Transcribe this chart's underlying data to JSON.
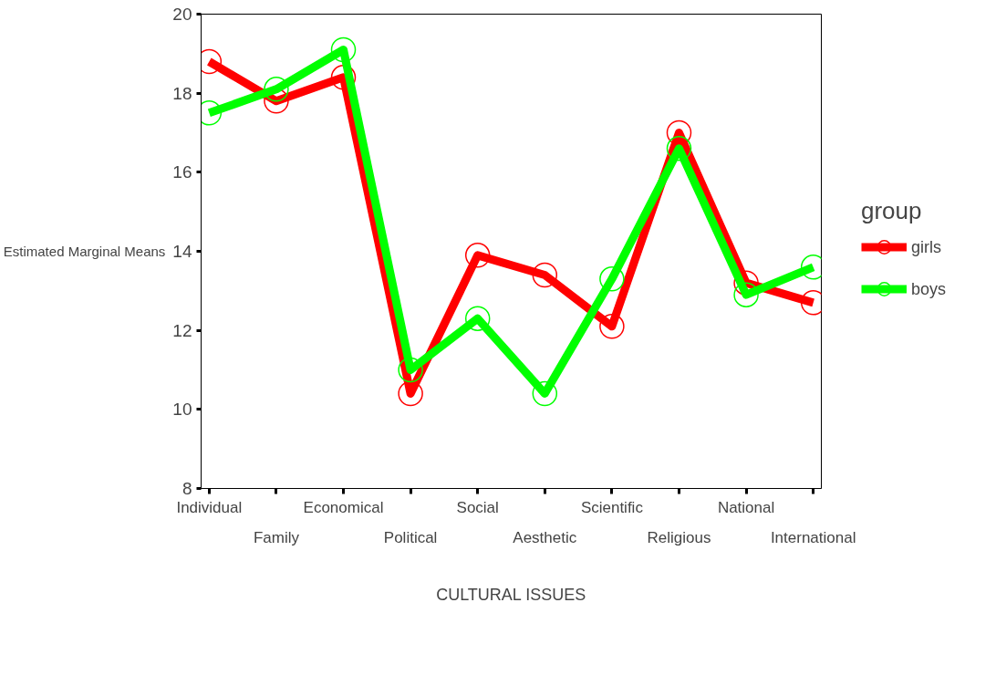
{
  "chart_data": {
    "type": "line",
    "xlabel": "CULTURAL ISSUES",
    "ylabel": "Estimated Marginal Means",
    "legend_title": "group",
    "categories": [
      "Individual",
      "Family",
      "Economical",
      "Political",
      "Social",
      "Aesthetic",
      "Scientific",
      "Religious",
      "National",
      "International"
    ],
    "series": [
      {
        "name": "girls",
        "color": "#ff0000",
        "values": [
          18.8,
          17.8,
          18.4,
          10.4,
          13.9,
          13.4,
          12.1,
          17.0,
          13.2,
          12.7
        ]
      },
      {
        "name": "boys",
        "color": "#00ff00",
        "values": [
          17.5,
          18.1,
          19.1,
          11.0,
          12.3,
          10.4,
          13.3,
          16.6,
          12.9,
          13.6
        ]
      }
    ],
    "ylim": [
      8,
      20
    ],
    "yticks": [
      8,
      10,
      12,
      14,
      16,
      18,
      20
    ],
    "grid": false,
    "legend": "right",
    "marker": "circle",
    "line_style": "solid"
  }
}
